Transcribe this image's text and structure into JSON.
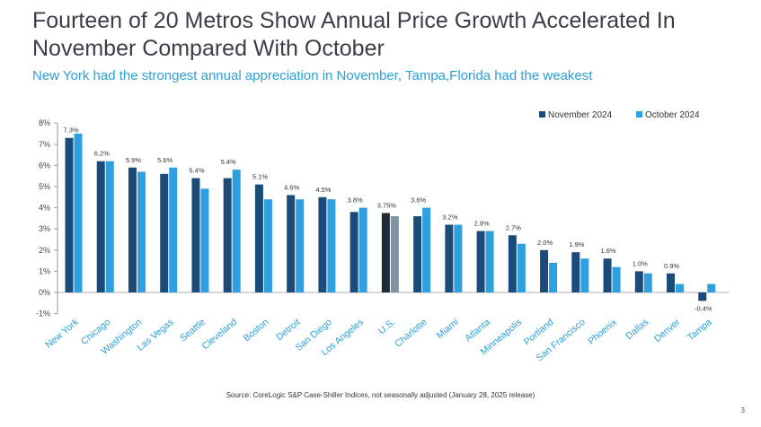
{
  "title": "Fourteen of 20 Metros Show Annual Price Growth Accelerated In November Compared With October",
  "subtitle": "New York had the strongest annual appreciation in November, Tampa,Florida had the weakest",
  "source": "Source: CoreLogic S&P Case-Shiller Indices, not seasonally adjusted (January 28, 2025 release)",
  "page_number": "3",
  "colors": {
    "november": "#1b4b78",
    "october": "#2ea0e0",
    "us_november": "#1f2a38",
    "us_october": "#7b94a6"
  },
  "chart_data": {
    "type": "bar",
    "title": "",
    "xlabel": "",
    "ylabel": "",
    "ylim": [
      -1,
      8
    ],
    "yticks": [
      -1,
      0,
      1,
      2,
      3,
      4,
      5,
      6,
      7,
      8
    ],
    "ytick_labels": [
      "-1%",
      "0%",
      "1%",
      "2%",
      "3%",
      "4%",
      "5%",
      "6%",
      "7%",
      "8%"
    ],
    "legend_position": "top-right",
    "categories": [
      "New York",
      "Chicago",
      "Washington",
      "Las Vegas",
      "Seattle",
      "Cleveland",
      "Boston",
      "Detroit",
      "San Diego",
      "Los Angeles",
      "U.S.",
      "Charlotte",
      "Miami",
      "Atlanta",
      "Minneapolis",
      "Portland",
      "San Francisco",
      "Phoenix",
      "Dallas",
      "Denver",
      "Tampa"
    ],
    "highlight_category": "U.S.",
    "series": [
      {
        "name": "November 2024",
        "values": [
          7.3,
          6.2,
          5.9,
          5.6,
          5.4,
          5.4,
          5.1,
          4.6,
          4.5,
          3.8,
          3.75,
          3.6,
          3.2,
          2.9,
          2.7,
          2.0,
          1.9,
          1.6,
          1.0,
          0.9,
          -0.4
        ],
        "data_labels": [
          "7.3%",
          "6.2%",
          "5.9%",
          "5.6%",
          "5.4%",
          "5.4%",
          "5.1%",
          "4.6%",
          "4.5%",
          "3.8%",
          "3.75%",
          "3.6%",
          "3.2%",
          "2.9%",
          "2.7%",
          "2.0%",
          "1.9%",
          "1.6%",
          "1.0%",
          "0.9%",
          "-0.4%"
        ]
      },
      {
        "name": "October 2024",
        "values": [
          7.5,
          6.2,
          5.7,
          5.9,
          4.9,
          5.8,
          4.4,
          4.4,
          4.4,
          4.0,
          3.6,
          4.0,
          3.2,
          2.9,
          2.3,
          1.4,
          1.6,
          1.2,
          0.9,
          0.4,
          0.4
        ]
      }
    ]
  }
}
